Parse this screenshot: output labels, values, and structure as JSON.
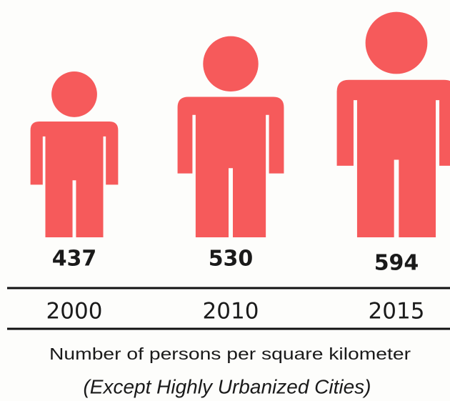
{
  "chart_data": {
    "type": "pictograph",
    "categories": [
      "2000",
      "2010",
      "2015"
    ],
    "values": [
      437,
      530,
      594
    ],
    "color": "#f65a5b",
    "subtitle": "Number of persons per square kilometer",
    "note": "(Except Highly Urbanized Cities)"
  }
}
